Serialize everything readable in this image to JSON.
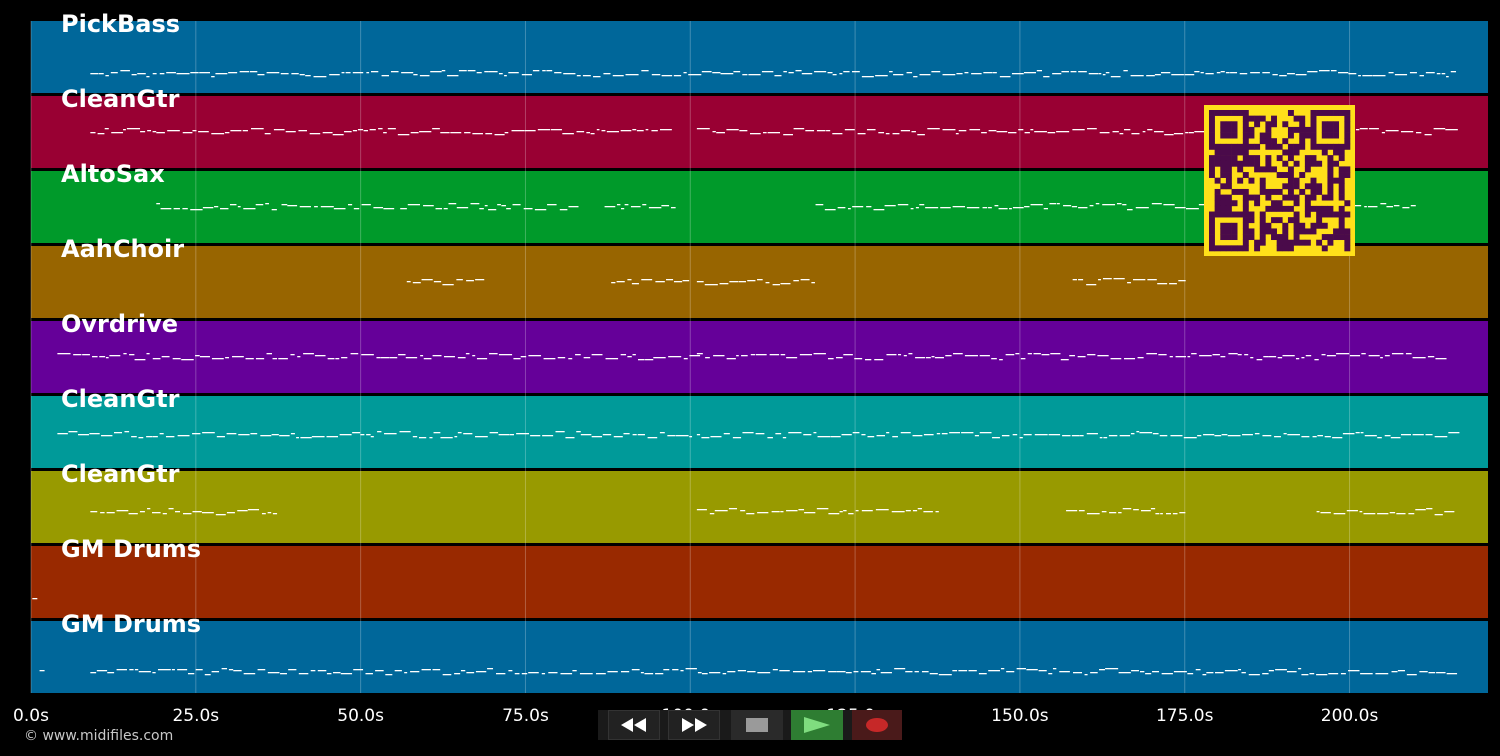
{
  "lanes": [
    {
      "name": "PickBass",
      "color": "#00679a"
    },
    {
      "name": "CleanGtr",
      "color": "#990033"
    },
    {
      "name": "AltoSax",
      "color": "#009a2a"
    },
    {
      "name": "AahChoir",
      "color": "#986500"
    },
    {
      "name": "Ovrdrive",
      "color": "#650099"
    },
    {
      "name": "CleanGtr",
      "color": "#009a99"
    },
    {
      "name": "CleanGtr",
      "color": "#989a00"
    },
    {
      "name": "GM Drums",
      "color": "#992900"
    },
    {
      "name": "GM Drums",
      "color": "#00679a"
    }
  ],
  "time_axis": {
    "ticks": [
      "0.0s",
      "25.0s",
      "50.0s",
      "75.0s",
      "100.0s",
      "125.0s",
      "150.0s",
      "175.0s",
      "200.0s"
    ],
    "max_seconds": 221
  },
  "copyright": "© www.midifiles.com",
  "transport": {
    "rewind_icon": "rewind-icon",
    "fast_forward_icon": "fast-forward-icon",
    "stop_icon": "stop-icon",
    "play_icon": "play-icon",
    "record_icon": "record-icon",
    "stop_color": "#9a9a9a",
    "play_color": "#2e7d32",
    "record_color": "#c62828"
  },
  "qr_colors": {
    "fg": "#4a0a4a",
    "bg": "#ffe01a"
  }
}
